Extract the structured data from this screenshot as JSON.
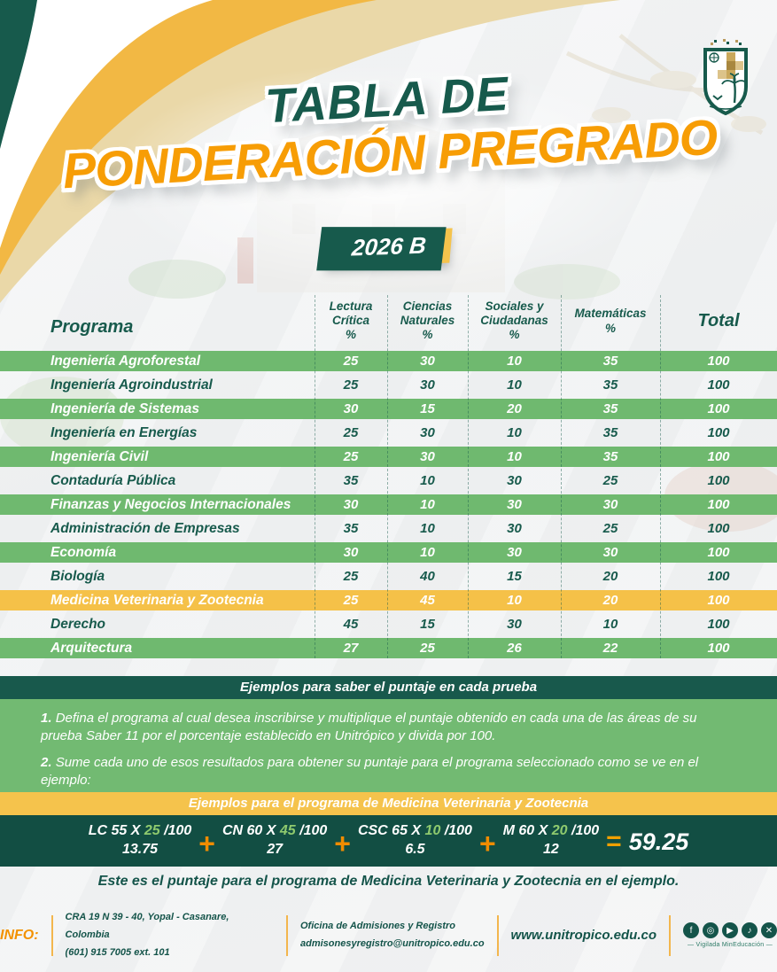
{
  "header": {
    "title_line1": "TABLA DE",
    "title_line2": "PONDERACIÓN PREGRADO",
    "badge": "2026 B"
  },
  "table": {
    "programa_header": "Programa",
    "columns": [
      {
        "label": "Lectura Crítica",
        "unit": "%"
      },
      {
        "label": "Ciencias Naturales",
        "unit": "%"
      },
      {
        "label": "Sociales y Ciudadanas",
        "unit": "%"
      },
      {
        "label": "Matemáticas",
        "unit": "%"
      }
    ],
    "total_header": "Total",
    "rows": [
      {
        "programa": "Ingeniería Agroforestal",
        "values": [
          25,
          30,
          10,
          35
        ],
        "total": 100,
        "style": "green"
      },
      {
        "programa": "Ingeniería Agroindustrial",
        "values": [
          25,
          30,
          10,
          35
        ],
        "total": 100,
        "style": "plain"
      },
      {
        "programa": "Ingeniería de Sistemas",
        "values": [
          30,
          15,
          20,
          35
        ],
        "total": 100,
        "style": "green"
      },
      {
        "programa": "Ingeniería en Energías",
        "values": [
          25,
          30,
          10,
          35
        ],
        "total": 100,
        "style": "plain"
      },
      {
        "programa": "Ingeniería Civil",
        "values": [
          25,
          30,
          10,
          35
        ],
        "total": 100,
        "style": "green"
      },
      {
        "programa": "Contaduría Pública",
        "values": [
          35,
          10,
          30,
          25
        ],
        "total": 100,
        "style": "plain"
      },
      {
        "programa": "Finanzas y Negocios Internacionales",
        "values": [
          30,
          10,
          30,
          30
        ],
        "total": 100,
        "style": "green"
      },
      {
        "programa": "Administración de Empresas",
        "values": [
          35,
          10,
          30,
          25
        ],
        "total": 100,
        "style": "plain"
      },
      {
        "programa": "Economía",
        "values": [
          30,
          10,
          30,
          30
        ],
        "total": 100,
        "style": "green"
      },
      {
        "programa": "Biología",
        "values": [
          25,
          40,
          15,
          20
        ],
        "total": 100,
        "style": "plain"
      },
      {
        "programa": "Medicina Veterinaria y Zootecnia",
        "values": [
          25,
          45,
          10,
          20
        ],
        "total": 100,
        "style": "yellow"
      },
      {
        "programa": "Derecho",
        "values": [
          45,
          15,
          30,
          10
        ],
        "total": 100,
        "style": "plain"
      },
      {
        "programa": "Arquitectura",
        "values": [
          27,
          25,
          26,
          22
        ],
        "total": 100,
        "style": "green"
      }
    ]
  },
  "examples": {
    "header1": "Ejemplos para saber el puntaje en cada prueba",
    "step1_num": "1.",
    "step1_text": "Defina el programa al cual desea inscribirse y multiplique el puntaje obtenido en cada una de las áreas de su prueba Saber 11 por el porcentaje establecido en Unitrópico y divida por 100.",
    "step2_num": "2.",
    "step2_text": "Sume cada uno de esos resultados para obtener su puntaje para el programa seleccionado como se ve en el ejemplo:",
    "header2": "Ejemplos para el programa de Medicina Veterinaria y Zootecnia",
    "formula": {
      "terms": [
        {
          "prefix": "LC 55 X ",
          "pct": "25",
          "suffix": " /100",
          "result": "13.75"
        },
        {
          "prefix": "CN 60 X ",
          "pct": "45",
          "suffix": " /100",
          "result": "27"
        },
        {
          "prefix": "CSC 65 X ",
          "pct": "10",
          "suffix": " /100",
          "result": "6.5"
        },
        {
          "prefix": "M 60 X ",
          "pct": "20",
          "suffix": " /100",
          "result": "12"
        }
      ],
      "plus": "+",
      "equals": "=",
      "total": "59.25"
    },
    "footnote": "Este es el puntaje para el programa de Medicina Veterinaria y Zootecnia en el ejemplo."
  },
  "footer": {
    "info_label": "INFO:",
    "address_line1": "CRA 19 N 39 - 40, Yopal - Casanare, Colombia",
    "address_line2": "(601) 915 7005 ext. 101",
    "office_line1": "Oficina de Admisiones y Registro",
    "office_line2": "admisonesyregistro@unitropico.edu.co",
    "website": "www.unitropico.edu.co",
    "social": [
      {
        "name": "facebook-icon",
        "glyph": "f"
      },
      {
        "name": "instagram-icon",
        "glyph": "◎"
      },
      {
        "name": "youtube-icon",
        "glyph": "▶"
      },
      {
        "name": "tiktok-icon",
        "glyph": "♪"
      },
      {
        "name": "x-icon",
        "glyph": "✕"
      }
    ],
    "vigilada": "— Vigilada MinEducación —"
  },
  "colors": {
    "teal": "#175a4c",
    "dark_teal_panel": "#124e43",
    "row_green": "#6fb96f",
    "panel_green": "#72ba72",
    "yellow": "#f5c34c",
    "orange_title": "#f79d05",
    "orange_plus": "#f08c00",
    "light_green_pct": "#8fca6e"
  }
}
